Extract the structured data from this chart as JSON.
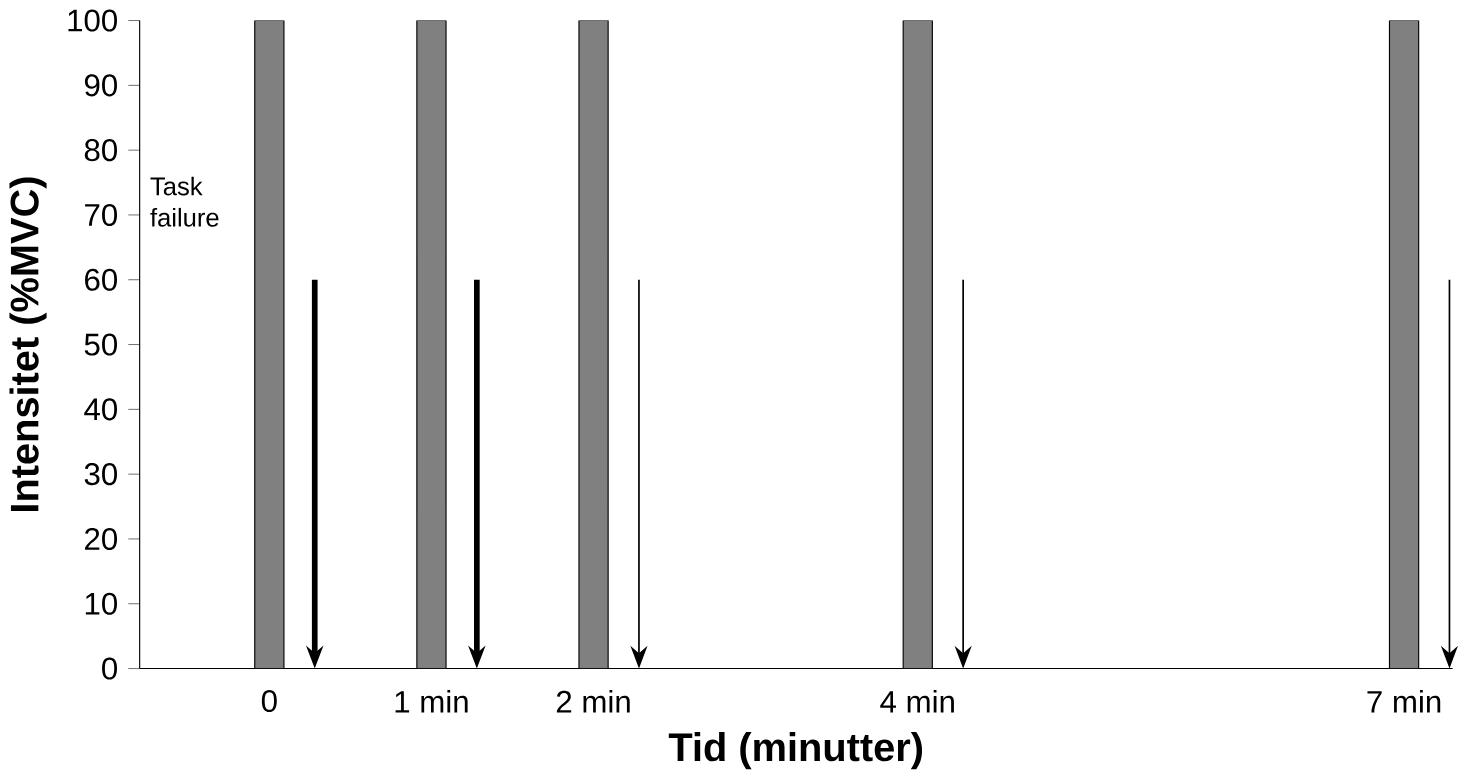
{
  "chart_data": {
    "type": "bar",
    "xlabel": "Tid (minutter)",
    "ylabel": "Intensitet (%MVC)",
    "x": [
      0,
      1,
      2,
      4,
      7
    ],
    "values": [
      100,
      100,
      100,
      100,
      100
    ],
    "color": "#808080",
    "xlim": [
      -0.8,
      7.3
    ],
    "xticks": [
      {
        "value": 0,
        "label": "0"
      },
      {
        "value": 1,
        "label": "1 min"
      },
      {
        "value": 2,
        "label": "2 min"
      },
      {
        "value": 4,
        "label": "4 min"
      },
      {
        "value": 7,
        "label": "7 min"
      }
    ],
    "ylim": [
      0,
      100
    ],
    "yticks": [
      0,
      10,
      20,
      30,
      40,
      50,
      60,
      70,
      80,
      90,
      100
    ],
    "annotations": [
      "Task failure"
    ],
    "grid": false
  }
}
